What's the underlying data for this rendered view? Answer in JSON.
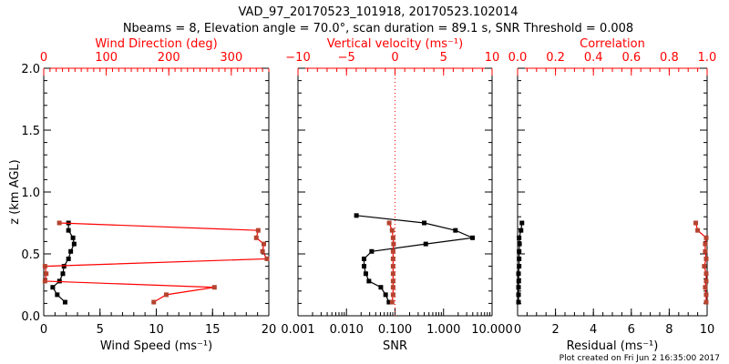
{
  "title": "VAD_97_20170523_101918, 20170523.102014",
  "subtitle": "Nbeams = 8, Elevation angle = 70.0°, scan duration = 89.1 s, SNR Threshold = 0.008",
  "footer": "Plot created on Fri Jun  2 16:35:00 2017",
  "colors": {
    "primary": "#000000",
    "secondary_line": "#ff0000",
    "secondary_marker": "#b5432f",
    "secondary_axis": "#ff0000"
  },
  "chart_data": [
    {
      "type": "line",
      "ylabel": "z (km AGL)",
      "ylim": [
        0,
        2.0
      ],
      "yticks": [
        0.0,
        0.5,
        1.0,
        1.5,
        2.0
      ],
      "ytick_labels": [
        "0.0",
        "0.5",
        "1.0",
        "1.5",
        "2.0"
      ],
      "yminor": 0.1,
      "bottom_axis": {
        "label": "Wind Speed (ms⁻¹)",
        "lim": [
          0,
          20
        ],
        "log": false,
        "ticks": [
          0,
          5,
          10,
          15,
          20
        ],
        "tick_labels": [
          "0",
          "5",
          "10",
          "15",
          "20"
        ],
        "minor": 1
      },
      "top_axis": {
        "label": "Wind Direction (deg)",
        "lim": [
          0,
          360
        ],
        "log": false,
        "ticks": [
          0,
          100,
          200,
          300
        ],
        "tick_labels": [
          "0",
          "100",
          "200",
          "300"
        ],
        "minor": 10
      },
      "series": [
        {
          "name": "Wind Speed",
          "axis": "bottom",
          "color": "black",
          "z": [
            0.75,
            0.69,
            0.63,
            0.58,
            0.52,
            0.46,
            0.4,
            0.34,
            0.28,
            0.23,
            0.17,
            0.11
          ],
          "x": [
            2.2,
            2.2,
            2.6,
            2.7,
            2.4,
            2.2,
            1.8,
            1.7,
            1.4,
            0.8,
            1.2,
            1.9
          ]
        },
        {
          "name": "Wind Direction",
          "axis": "top",
          "color": "red",
          "z": [
            0.75,
            0.69,
            0.63,
            0.58,
            0.52,
            0.46,
            0.4,
            0.34,
            0.28,
            0.23,
            0.17,
            0.11
          ],
          "x": [
            25,
            343,
            340,
            352,
            350,
            357,
            2,
            4,
            2,
            273,
            196,
            176
          ]
        }
      ]
    },
    {
      "type": "line",
      "bottom_axis": {
        "label": "SNR",
        "lim": [
          0.001,
          10
        ],
        "log": true,
        "ticks": [
          0.001,
          0.01,
          0.1,
          1,
          10
        ],
        "tick_labels": [
          "0.001",
          "0.010",
          "0.100",
          "1.000",
          "10.000"
        ]
      },
      "top_axis": {
        "label": "Vertical velocity (ms⁻¹)",
        "lim": [
          -10,
          10
        ],
        "log": false,
        "ticks": [
          -10,
          -5,
          0,
          5,
          10
        ],
        "tick_labels": [
          "−10",
          "−5",
          "0",
          "5",
          "10"
        ],
        "minor": 1
      },
      "reference_line": {
        "axis": "top",
        "value": 0,
        "style": "dotted",
        "color": "red"
      },
      "series": [
        {
          "name": "SNR",
          "axis": "bottom",
          "color": "black",
          "z": [
            0.81,
            0.75,
            0.69,
            0.63,
            0.58,
            0.52,
            0.46,
            0.4,
            0.34,
            0.28,
            0.23,
            0.17,
            0.11
          ],
          "x": [
            0.016,
            0.4,
            1.76,
            3.96,
            0.43,
            0.033,
            0.023,
            0.023,
            0.025,
            0.029,
            0.051,
            0.064,
            0.075
          ]
        },
        {
          "name": "Vertical velocity",
          "axis": "top",
          "color": "red",
          "z": [
            0.75,
            0.69,
            0.63,
            0.58,
            0.52,
            0.46,
            0.4,
            0.34,
            0.28,
            0.23,
            0.17,
            0.11
          ],
          "x": [
            -0.6,
            -0.3,
            -0.2,
            -0.15,
            -0.2,
            -0.2,
            -0.2,
            -0.2,
            -0.2,
            -0.2,
            -0.2,
            -0.3
          ]
        }
      ]
    },
    {
      "type": "line",
      "bottom_axis": {
        "label": "Residual (ms⁻¹)",
        "lim": [
          0,
          10
        ],
        "log": false,
        "ticks": [
          0,
          2,
          4,
          6,
          8,
          10
        ],
        "tick_labels": [
          "0",
          "2",
          "4",
          "6",
          "8",
          "10"
        ],
        "minor": 0.5
      },
      "top_axis": {
        "label": "Correlation",
        "lim": [
          0,
          1
        ],
        "log": false,
        "ticks": [
          0,
          0.2,
          0.4,
          0.6,
          0.8,
          1.0
        ],
        "tick_labels": [
          "0.0",
          "0.2",
          "0.4",
          "0.6",
          "0.8",
          "1.0"
        ],
        "minor": 0.05
      },
      "series": [
        {
          "name": "Residual",
          "axis": "bottom",
          "color": "black",
          "z": [
            0.75,
            0.69,
            0.63,
            0.58,
            0.52,
            0.46,
            0.4,
            0.34,
            0.28,
            0.23,
            0.17,
            0.11
          ],
          "x": [
            0.23,
            0.18,
            0.08,
            0.1,
            0.08,
            0.08,
            0.08,
            0.05,
            0.06,
            0.05,
            0.05,
            0.05
          ]
        },
        {
          "name": "Correlation",
          "axis": "top",
          "color": "red",
          "z": [
            0.75,
            0.69,
            0.63,
            0.58,
            0.52,
            0.46,
            0.4,
            0.34,
            0.28,
            0.23,
            0.17,
            0.11
          ],
          "x": [
            0.94,
            0.95,
            0.995,
            0.99,
            0.99,
            0.995,
            0.985,
            0.995,
            0.995,
            0.99,
            0.995,
            0.995
          ]
        }
      ]
    }
  ]
}
